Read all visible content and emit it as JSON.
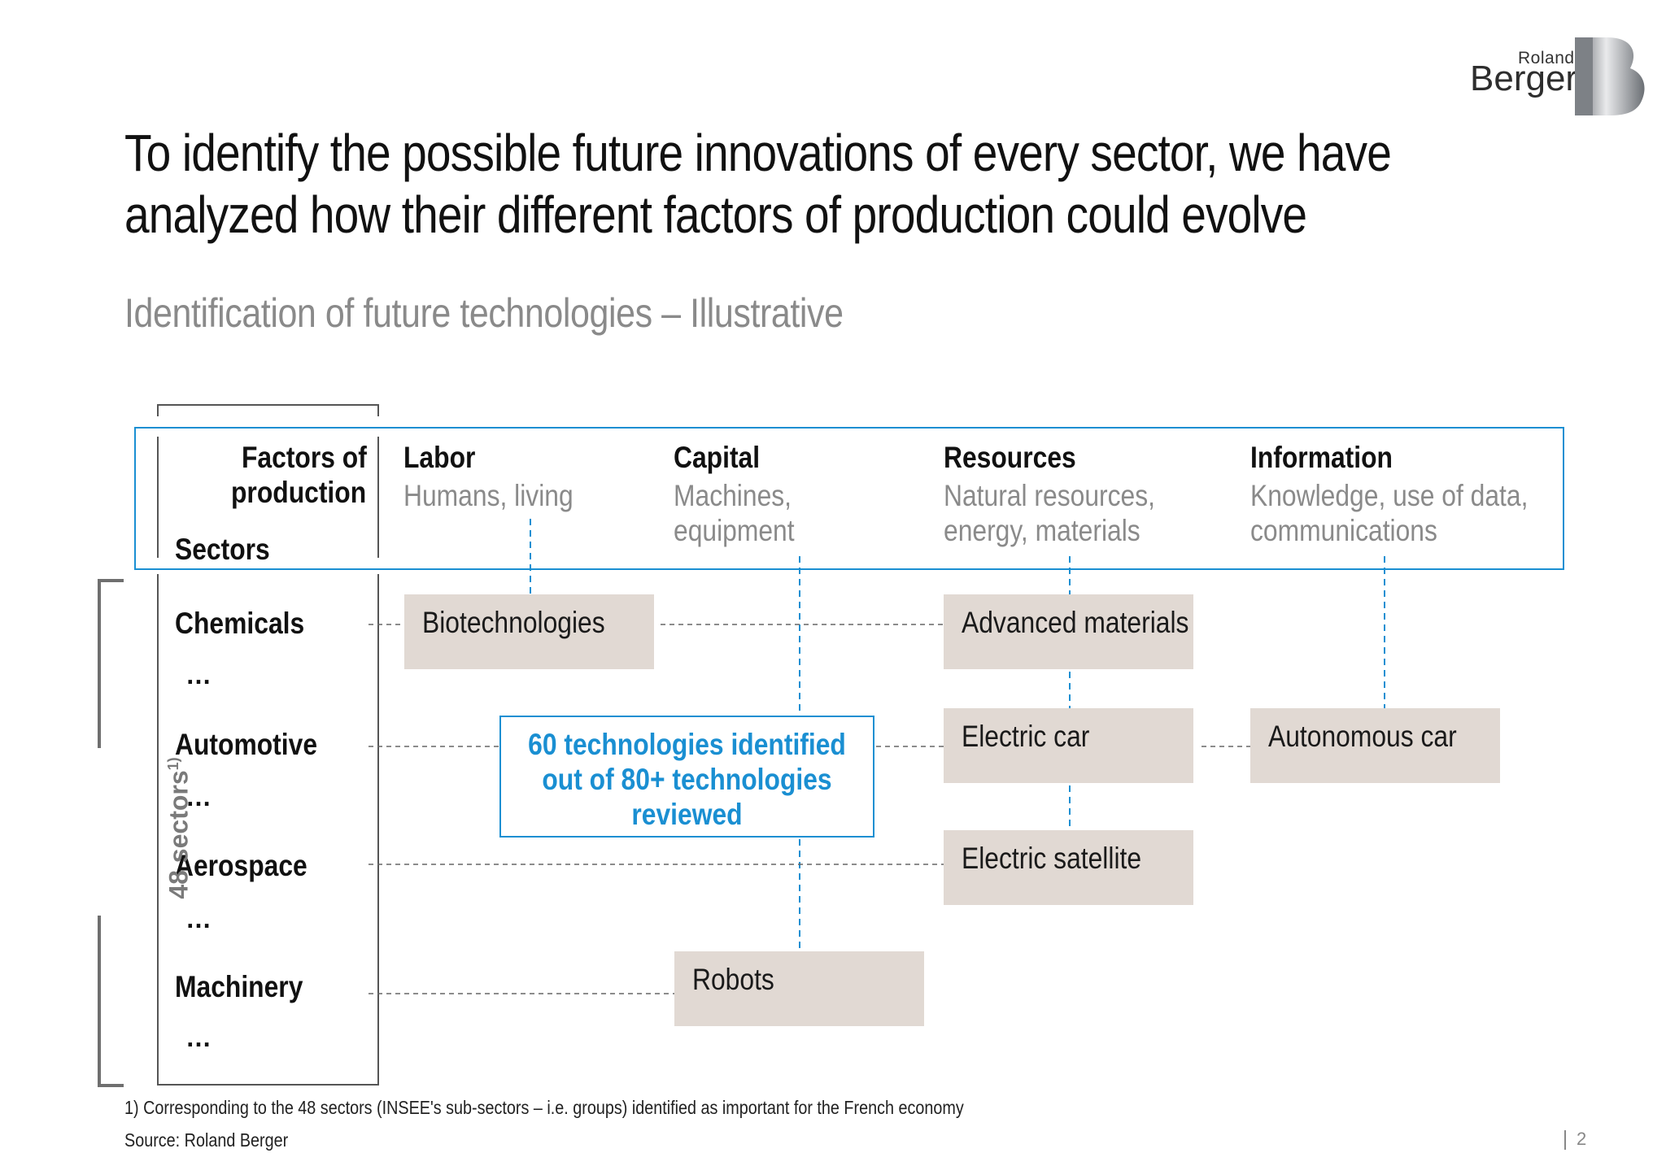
{
  "brand": {
    "line1": "Roland",
    "line2": "Berger"
  },
  "title": "To identify the possible future innovations of every sector, we have analyzed how their different factors of production could evolve",
  "title_lines": [
    "To identify the possible future innovations of every sector, we have",
    "analyzed how their different factors of production could evolve"
  ],
  "subtitle": "Identification of future technologies – Illustrative",
  "corner": {
    "factors_line1": "Factors of",
    "factors_line2": "production",
    "sectors": "Sectors"
  },
  "factors": [
    {
      "name": "Labor",
      "desc": [
        "Humans, living"
      ]
    },
    {
      "name": "Capital",
      "desc": [
        "Machines,",
        "equipment"
      ]
    },
    {
      "name": "Resources",
      "desc": [
        "Natural resources,",
        "energy, materials"
      ]
    },
    {
      "name": "Information",
      "desc": [
        "Knowledge, use of data,",
        "communications"
      ]
    }
  ],
  "sectors": [
    "Chemicals",
    "Automotive",
    "Aerospace",
    "Machinery"
  ],
  "ellipsis": "…",
  "sectors_count_label": "48 sectors",
  "sectors_count_sup": "1)",
  "technologies": {
    "biotech": "Biotechnologies",
    "advanced_materials": "Advanced materials",
    "electric_car": "Electric car",
    "autonomous_car": "Autonomous car",
    "electric_satellite": "Electric satellite",
    "robots": "Robots"
  },
  "callout": [
    "60 technologies identified",
    "out of 80+ technologies",
    "reviewed"
  ],
  "footnote": "1) Corresponding to the 48 sectors (INSEE's sub-sectors – i.e. groups) identified as important for the French economy",
  "source": "Source: Roland Berger",
  "page_number": "2",
  "colors": {
    "accent_blue": "#1a8fd2",
    "tech_box": "#e1d9d3",
    "muted_text": "#8a8a8a"
  }
}
